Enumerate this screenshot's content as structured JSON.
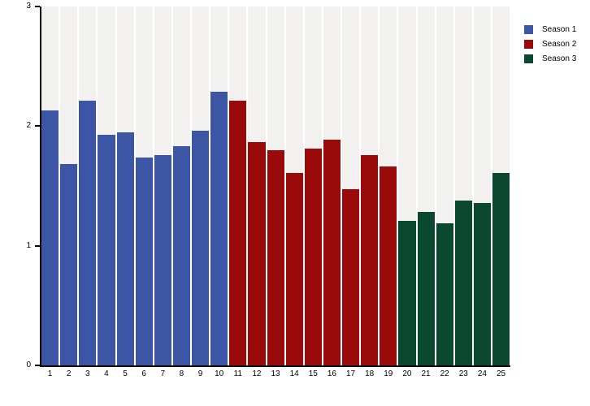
{
  "chart_data": {
    "type": "bar",
    "title": "",
    "xlabel": "",
    "ylabel": "",
    "ylim": [
      0,
      3
    ],
    "yticks": [
      0,
      1,
      2,
      3
    ],
    "grid": false,
    "legend_position": "top-right",
    "plot_band_color": "#f2f1ef",
    "axis_color": "#000000",
    "categories": [
      "1",
      "2",
      "3",
      "4",
      "5",
      "6",
      "7",
      "8",
      "9",
      "10",
      "11",
      "12",
      "13",
      "14",
      "15",
      "16",
      "17",
      "18",
      "19",
      "20",
      "21",
      "22",
      "23",
      "24",
      "25"
    ],
    "series": [
      {
        "name": "Season 1",
        "color": "#3c55a5",
        "categories": [
          "1",
          "2",
          "3",
          "4",
          "5",
          "6",
          "7",
          "8",
          "9",
          "10"
        ],
        "values": [
          2.13,
          1.68,
          2.21,
          1.93,
          1.95,
          1.74,
          1.76,
          1.83,
          1.96,
          2.29
        ]
      },
      {
        "name": "Season 2",
        "color": "#9b0a0a",
        "categories": [
          "11",
          "12",
          "13",
          "14",
          "15",
          "16",
          "17",
          "18",
          "19"
        ],
        "values": [
          2.21,
          1.87,
          1.8,
          1.61,
          1.81,
          1.89,
          1.47,
          1.76,
          1.66
        ]
      },
      {
        "name": "Season 3",
        "color": "#0a4830",
        "categories": [
          "20",
          "21",
          "22",
          "23",
          "24",
          "25"
        ],
        "values": [
          1.21,
          1.28,
          1.19,
          1.38,
          1.36,
          1.61
        ]
      }
    ]
  }
}
